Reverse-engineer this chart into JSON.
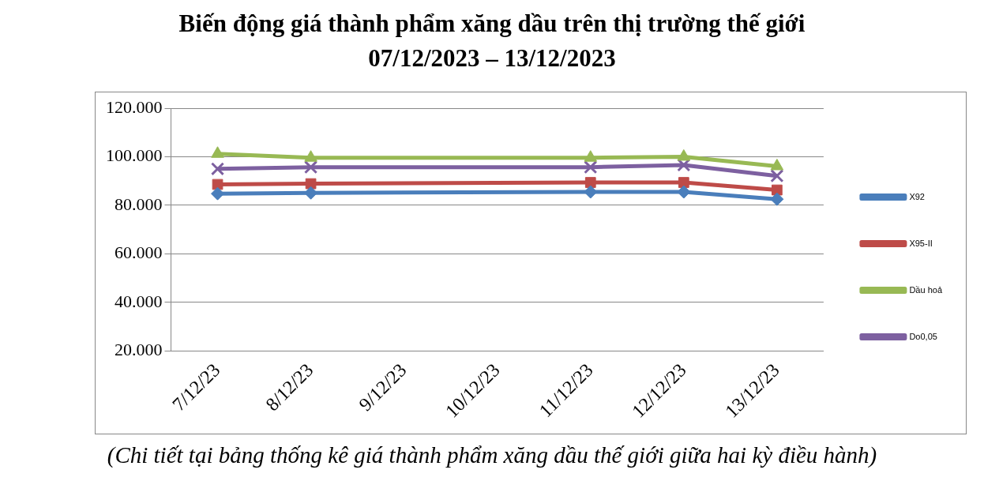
{
  "chart_data": {
    "type": "line",
    "title": "Biến động giá thành phẩm xăng dầu trên thị trường thế giới",
    "subtitle": "07/12/2023 – 13/12/2023",
    "categories": [
      "7/12/23",
      "8/12/23",
      "9/12/23",
      "10/12/23",
      "11/12/23",
      "12/12/23",
      "13/12/23"
    ],
    "series": [
      {
        "name": "X92",
        "color": "#4a7ebb",
        "marker": "diamond",
        "values": [
          84800,
          85100,
          null,
          null,
          85500,
          85500,
          82500
        ]
      },
      {
        "name": "X95-II",
        "color": "#be4b48",
        "marker": "square",
        "values": [
          88600,
          88900,
          null,
          null,
          89400,
          89400,
          86300
        ]
      },
      {
        "name": "Dầu hoả",
        "color": "#98b954",
        "marker": "triangle",
        "values": [
          101200,
          99600,
          null,
          null,
          99600,
          100000,
          96100
        ]
      },
      {
        "name": "Do0,05",
        "color": "#7d60a0",
        "marker": "cross",
        "values": [
          95000,
          95700,
          null,
          null,
          95700,
          96600,
          92100
        ]
      }
    ],
    "ylim": [
      20000,
      120000
    ],
    "yticks": [
      {
        "value": 20000,
        "label": "20.000"
      },
      {
        "value": 40000,
        "label": "40.000"
      },
      {
        "value": 60000,
        "label": "60.000"
      },
      {
        "value": 80000,
        "label": "80.000"
      },
      {
        "value": 100000,
        "label": "100.000"
      },
      {
        "value": 120000,
        "label": "120.000"
      }
    ],
    "grid": "y",
    "legend": "right",
    "annotations": [
      "(Chi tiết tại bảng thống kê giá thành phẩm xăng dầu thế giới giữa hai kỳ điều hành)"
    ]
  }
}
